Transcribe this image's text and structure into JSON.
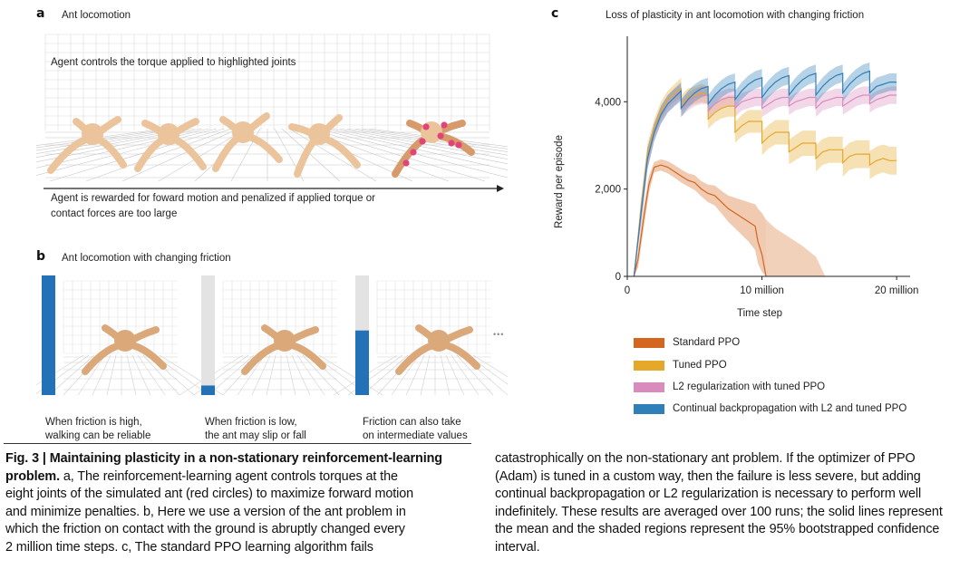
{
  "panel_a": {
    "letter": "a",
    "title": "Ant locomotion",
    "top_text": "Agent controls the torque applied to highlighted joints",
    "bottom_text_line1": "Agent is rewarded for foward motion and penalized if applied torque or",
    "bottom_text_line2": "contact forces are too large"
  },
  "panel_b": {
    "letter": "b",
    "title": "Ant locomotion with changing friction",
    "ellipsis": "•••",
    "frames": [
      {
        "friction_level": 1.0,
        "caption_line1": "When friction is high,",
        "caption_line2": "walking can be reliable"
      },
      {
        "friction_level": 0.08,
        "caption_line1": "When friction is low,",
        "caption_line2": "the ant may slip or fall"
      },
      {
        "friction_level": 0.54,
        "caption_line1": "Friction can also take",
        "caption_line2": "on intermediate values"
      }
    ]
  },
  "panel_c": {
    "letter": "c",
    "title": "Loss of plasticity in ant locomotion with changing friction"
  },
  "colors": {
    "standard": "#d4661f",
    "tuned": "#e6a82a",
    "l2": "#d98bbd",
    "cbp": "#2f7fb8",
    "friction_bar": "#2372b7",
    "friction_bg": "#e3e3e3"
  },
  "chart_data": {
    "type": "line",
    "title": "Loss of plasticity in ant locomotion with changing friction",
    "xlabel": "Time step",
    "ylabel": "Reward per episode",
    "xlim": [
      0,
      21000000
    ],
    "ylim": [
      0,
      5500
    ],
    "xticks": [
      0,
      10000000,
      20000000
    ],
    "xtick_labels": [
      "0",
      "10  million",
      "20 million"
    ],
    "yticks": [
      0,
      2000,
      4000
    ],
    "ytick_labels": [
      "0",
      "2,000",
      "4,000"
    ],
    "legend_position": "below",
    "series": [
      {
        "name": "Standard PPO",
        "color": "#d4661f",
        "x": [
          500000,
          800000,
          1200000,
          1600000,
          2000000,
          2500000,
          3000000,
          3500000,
          4000000,
          4500000,
          5000000,
          5500000,
          6000000,
          6500000,
          7000000,
          7500000,
          8000000,
          8500000,
          9000000,
          9500000,
          9700000,
          10000000,
          10300000
        ],
        "y": [
          0,
          400,
          1300,
          2100,
          2500,
          2550,
          2500,
          2400,
          2300,
          2200,
          2150,
          2000,
          1900,
          1850,
          1700,
          1550,
          1450,
          1350,
          1250,
          1150,
          800,
          500,
          0
        ],
        "lower": [
          0,
          200,
          1050,
          1900,
          2380,
          2420,
          2360,
          2260,
          2150,
          2060,
          1980,
          1830,
          1700,
          1620,
          1440,
          1250,
          1100,
          950,
          800,
          600,
          300,
          100,
          0
        ],
        "upper": [
          0,
          600,
          1550,
          2300,
          2620,
          2680,
          2640,
          2550,
          2450,
          2360,
          2320,
          2180,
          2100,
          2080,
          1960,
          1850,
          1800,
          1750,
          1700,
          1650,
          1550,
          1450,
          1300
        ],
        "tail_x": [
          10300000,
          11000000,
          12000000,
          13000000,
          14000000,
          14700000
        ],
        "tail_upper": [
          1300,
          1100,
          900,
          700,
          450,
          0
        ]
      },
      {
        "name": "Tuned PPO",
        "color": "#e6a82a",
        "x": [
          500000,
          1000000,
          1500000,
          2000000,
          2500000,
          3000000,
          3500000,
          3999000,
          4001000,
          4500000,
          5000000,
          5500000,
          5999000,
          6001000,
          6500000,
          7000000,
          7500000,
          7999000,
          8001000,
          8500000,
          9000000,
          9500000,
          9999000,
          10001000,
          10500000,
          11000000,
          11500000,
          11999000,
          12001000,
          12500000,
          13000000,
          13500000,
          13999000,
          14001000,
          14500000,
          15000000,
          15500000,
          15999000,
          16001000,
          16500000,
          17000000,
          17500000,
          17999000,
          18001000,
          18500000,
          19000000,
          19500000,
          20000000
        ],
        "y": [
          0,
          1500,
          2800,
          3400,
          3800,
          4050,
          4200,
          4300,
          3950,
          4100,
          4150,
          4200,
          4150,
          3600,
          3750,
          3850,
          3900,
          3900,
          3300,
          3450,
          3550,
          3550,
          3550,
          3050,
          3200,
          3300,
          3300,
          3300,
          2850,
          2950,
          3050,
          3050,
          3050,
          2700,
          2850,
          2900,
          2900,
          2900,
          2600,
          2750,
          2800,
          2800,
          2800,
          2550,
          2650,
          2700,
          2650,
          2650
        ],
        "lower": [
          0,
          1250,
          2550,
          3200,
          3600,
          3850,
          4000,
          4100,
          3750,
          3900,
          3950,
          3990,
          3950,
          3380,
          3530,
          3620,
          3660,
          3660,
          3060,
          3200,
          3290,
          3290,
          3290,
          2780,
          2930,
          3020,
          3020,
          3020,
          2570,
          2660,
          2760,
          2760,
          2760,
          2400,
          2550,
          2600,
          2600,
          2600,
          2280,
          2440,
          2480,
          2480,
          2480,
          2230,
          2330,
          2380,
          2330,
          2330
        ],
        "upper": [
          0,
          1750,
          3050,
          3600,
          4000,
          4250,
          4400,
          4550,
          4150,
          4300,
          4350,
          4410,
          4350,
          3820,
          3970,
          4080,
          4140,
          4140,
          3540,
          3700,
          3810,
          3810,
          3810,
          3320,
          3470,
          3580,
          3580,
          3580,
          3130,
          3240,
          3340,
          3340,
          3340,
          3000,
          3150,
          3200,
          3200,
          3200,
          2920,
          3060,
          3120,
          3120,
          3120,
          2870,
          2970,
          3020,
          2970,
          2970
        ]
      },
      {
        "name": "L2 regularization with tuned PPO",
        "color": "#d98bbd",
        "x": [
          500000,
          1000000,
          1500000,
          2000000,
          2500000,
          3000000,
          3500000,
          3999000,
          4001000,
          4500000,
          5000000,
          5500000,
          5999000,
          6001000,
          6500000,
          7000000,
          7500000,
          7999000,
          8001000,
          8500000,
          9000000,
          9500000,
          9999000,
          10001000,
          10500000,
          11000000,
          11500000,
          11999000,
          12001000,
          12500000,
          13000000,
          13500000,
          13999000,
          14001000,
          14500000,
          15000000,
          15500000,
          15999000,
          16001000,
          16500000,
          17000000,
          17500000,
          17999000,
          18001000,
          18500000,
          19000000,
          19500000,
          20000000
        ],
        "y": [
          0,
          1400,
          2700,
          3300,
          3700,
          3950,
          4100,
          4200,
          3850,
          4000,
          4100,
          4150,
          4150,
          3800,
          3950,
          4050,
          4100,
          4100,
          3850,
          4000,
          4050,
          4100,
          4100,
          3850,
          3950,
          4050,
          4100,
          4100,
          3900,
          4000,
          4050,
          4100,
          4100,
          3850,
          4000,
          4050,
          4100,
          4100,
          3900,
          4000,
          4100,
          4150,
          4150,
          3950,
          4050,
          4100,
          4150,
          4150
        ],
        "lower": [
          0,
          1150,
          2450,
          3100,
          3500,
          3750,
          3900,
          4000,
          3650,
          3800,
          3900,
          3950,
          3950,
          3600,
          3750,
          3850,
          3900,
          3900,
          3650,
          3800,
          3850,
          3900,
          3900,
          3650,
          3750,
          3850,
          3900,
          3900,
          3700,
          3800,
          3850,
          3900,
          3900,
          3650,
          3800,
          3850,
          3900,
          3900,
          3700,
          3800,
          3900,
          3950,
          3950,
          3750,
          3850,
          3900,
          3950,
          3950
        ],
        "upper": [
          0,
          1650,
          2950,
          3500,
          3900,
          4150,
          4300,
          4400,
          4050,
          4200,
          4300,
          4350,
          4350,
          4000,
          4150,
          4250,
          4300,
          4300,
          4050,
          4200,
          4250,
          4300,
          4300,
          4050,
          4150,
          4250,
          4300,
          4300,
          4100,
          4200,
          4250,
          4300,
          4300,
          4050,
          4200,
          4250,
          4300,
          4300,
          4100,
          4200,
          4300,
          4350,
          4350,
          4150,
          4250,
          4300,
          4350,
          4350
        ]
      },
      {
        "name": "Continual backpropagation with L2 and tuned PPO",
        "color": "#2f7fb8",
        "x": [
          500000,
          1000000,
          1500000,
          2000000,
          2500000,
          3000000,
          3500000,
          3999000,
          4001000,
          4500000,
          5000000,
          5500000,
          5999000,
          6001000,
          6500000,
          7000000,
          7500000,
          7999000,
          8001000,
          8500000,
          9000000,
          9500000,
          9999000,
          10001000,
          10500000,
          11000000,
          11500000,
          11999000,
          12001000,
          12500000,
          13000000,
          13500000,
          13999000,
          14001000,
          14500000,
          15000000,
          15500000,
          15999000,
          16001000,
          16500000,
          17000000,
          17500000,
          17999000,
          18001000,
          18500000,
          19000000,
          19500000,
          20000000
        ],
        "y": [
          0,
          1400,
          2700,
          3300,
          3700,
          3950,
          4100,
          4250,
          3850,
          4050,
          4200,
          4300,
          4350,
          3950,
          4150,
          4300,
          4400,
          4450,
          4050,
          4250,
          4400,
          4500,
          4550,
          4100,
          4300,
          4450,
          4550,
          4600,
          4150,
          4350,
          4500,
          4600,
          4650,
          4150,
          4350,
          4500,
          4600,
          4650,
          4200,
          4400,
          4550,
          4650,
          4700,
          4200,
          4350,
          4400,
          4450,
          4450
        ],
        "lower": [
          0,
          1150,
          2450,
          3100,
          3500,
          3750,
          3900,
          4050,
          3650,
          3850,
          4000,
          4100,
          4150,
          3750,
          3950,
          4100,
          4200,
          4250,
          3850,
          4050,
          4200,
          4300,
          4350,
          3900,
          4100,
          4250,
          4350,
          4400,
          3950,
          4150,
          4300,
          4400,
          4450,
          3950,
          4150,
          4300,
          4400,
          4450,
          4000,
          4200,
          4350,
          4450,
          4500,
          4000,
          4150,
          4200,
          4250,
          4250
        ],
        "upper": [
          0,
          1650,
          2950,
          3500,
          3900,
          4150,
          4300,
          4450,
          4050,
          4250,
          4400,
          4500,
          4550,
          4150,
          4350,
          4500,
          4600,
          4650,
          4250,
          4450,
          4600,
          4700,
          4750,
          4300,
          4500,
          4650,
          4750,
          4800,
          4350,
          4550,
          4700,
          4800,
          4850,
          4350,
          4550,
          4700,
          4800,
          4850,
          4400,
          4600,
          4750,
          4850,
          4900,
          4400,
          4550,
          4600,
          4650,
          4650
        ]
      }
    ]
  },
  "caption": {
    "figlabel": "Fig. 3 | Maintaining plasticity in a non-stationary reinforcement-learning",
    "figlabel2": "problem.",
    "left_lines": [
      " a, The reinforcement-learning agent controls torques at the",
      "eight joints of the simulated ant (red circles) to maximize forward motion",
      "and minimize penalties. b, Here we use a version of the ant problem in",
      "which the friction on contact with the ground is abruptly changed every",
      "2 million time steps. c, The standard PPO learning algorithm fails"
    ],
    "right_lines": [
      "catastrophically on the non-stationary ant problem. If the optimizer of PPO",
      "(Adam) is tuned in a custom way, then the failure is less severe, but adding",
      "continual backpropagation or L2 regularization is necessary to perform well",
      "indefinitely. These results are averaged over 100 runs; the solid lines represent",
      "the mean and the shaded regions represent the 95% bootstrapped confidence",
      "interval."
    ]
  }
}
